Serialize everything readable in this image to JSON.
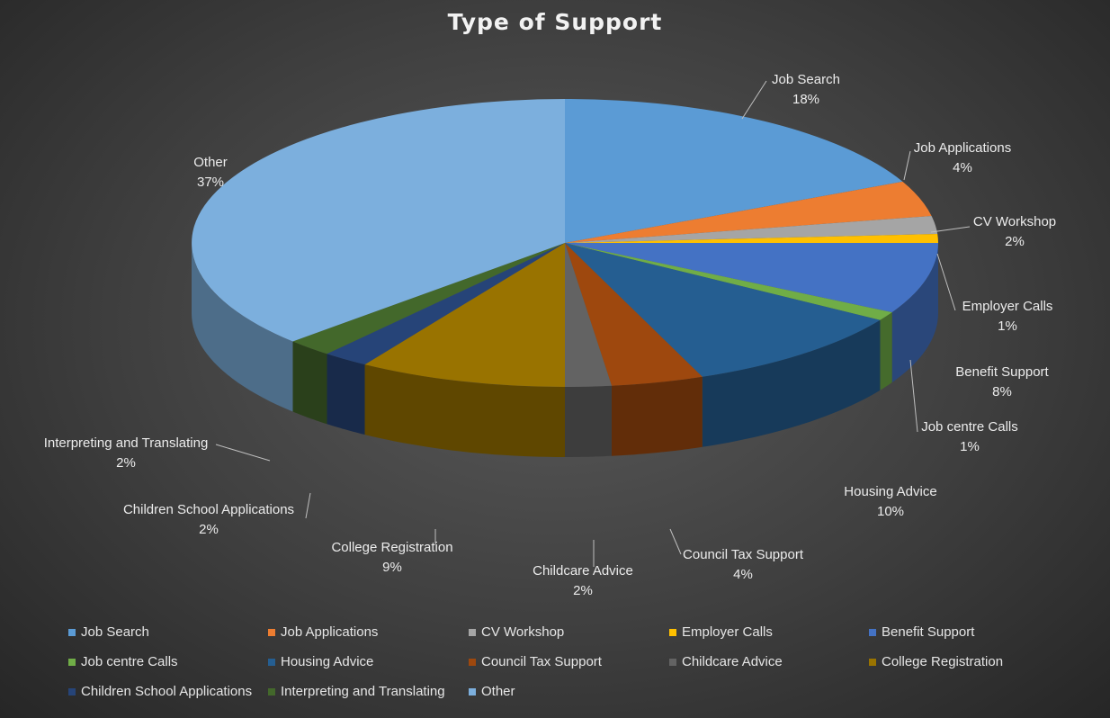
{
  "chart_data": {
    "type": "pie",
    "title": "Type of Support",
    "three_d": true,
    "legend_position": "bottom",
    "slices": [
      {
        "name": "Job Search",
        "value": 18,
        "label": "18%",
        "color": "#5b9bd5"
      },
      {
        "name": "Job Applications",
        "value": 4,
        "label": "4%",
        "color": "#ed7d31"
      },
      {
        "name": "CV Workshop",
        "value": 2,
        "label": "2%",
        "color": "#a5a5a5"
      },
      {
        "name": "Employer Calls",
        "value": 1,
        "label": "1%",
        "color": "#ffc000"
      },
      {
        "name": "Benefit Support",
        "value": 8,
        "label": "8%",
        "color": "#4472c4"
      },
      {
        "name": "Job centre Calls",
        "value": 1,
        "label": "1%",
        "color": "#70ad47"
      },
      {
        "name": "Housing Advice",
        "value": 10,
        "label": "10%",
        "color": "#255e91"
      },
      {
        "name": "Council Tax Support",
        "value": 4,
        "label": "4%",
        "color": "#9e480e"
      },
      {
        "name": "Childcare Advice",
        "value": 2,
        "label": "2%",
        "color": "#636363"
      },
      {
        "name": "College Registration",
        "value": 9,
        "label": "9%",
        "color": "#997300"
      },
      {
        "name": "Children School Applications",
        "value": 2,
        "label": "2%",
        "color": "#264478"
      },
      {
        "name": "Interpreting and Translating",
        "value": 2,
        "label": "2%",
        "color": "#43682b"
      },
      {
        "name": "Other",
        "value": 37,
        "label": "37%",
        "color": "#7cafdd"
      }
    ]
  }
}
